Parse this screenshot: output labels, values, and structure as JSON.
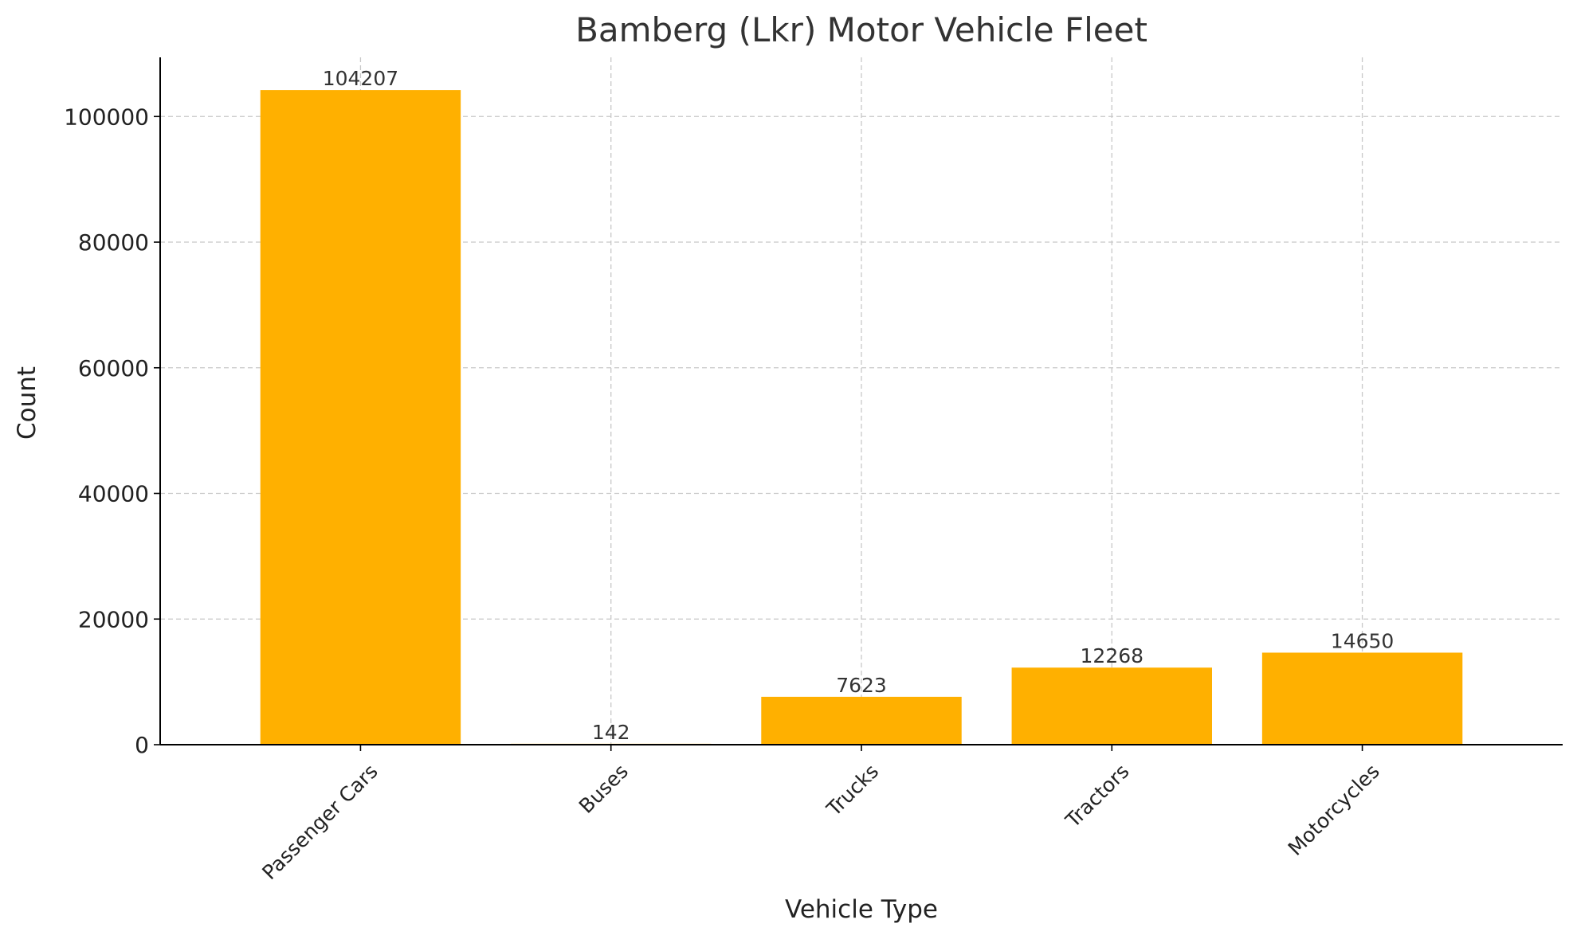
{
  "chart_data": {
    "type": "bar",
    "title": "Bamberg (Lkr) Motor Vehicle Fleet",
    "xlabel": "Vehicle Type",
    "ylabel": "Count",
    "categories": [
      "Passenger Cars",
      "Buses",
      "Trucks",
      "Tractors",
      "Motorcycles"
    ],
    "values": [
      104207,
      142,
      7623,
      12268,
      14650
    ],
    "data_labels": [
      "104207",
      "142",
      "7623",
      "12268",
      "14650"
    ],
    "y_ticks": [
      0,
      20000,
      40000,
      60000,
      80000,
      100000
    ],
    "y_tick_labels": [
      "0",
      "20000",
      "40000",
      "60000",
      "80000",
      "100000"
    ],
    "ylim": [
      0,
      109417
    ],
    "grid": true,
    "colors": {
      "bar": "#FFB000",
      "grid": "#c8c8c8",
      "axis": "#000000",
      "text": "#333333"
    }
  }
}
